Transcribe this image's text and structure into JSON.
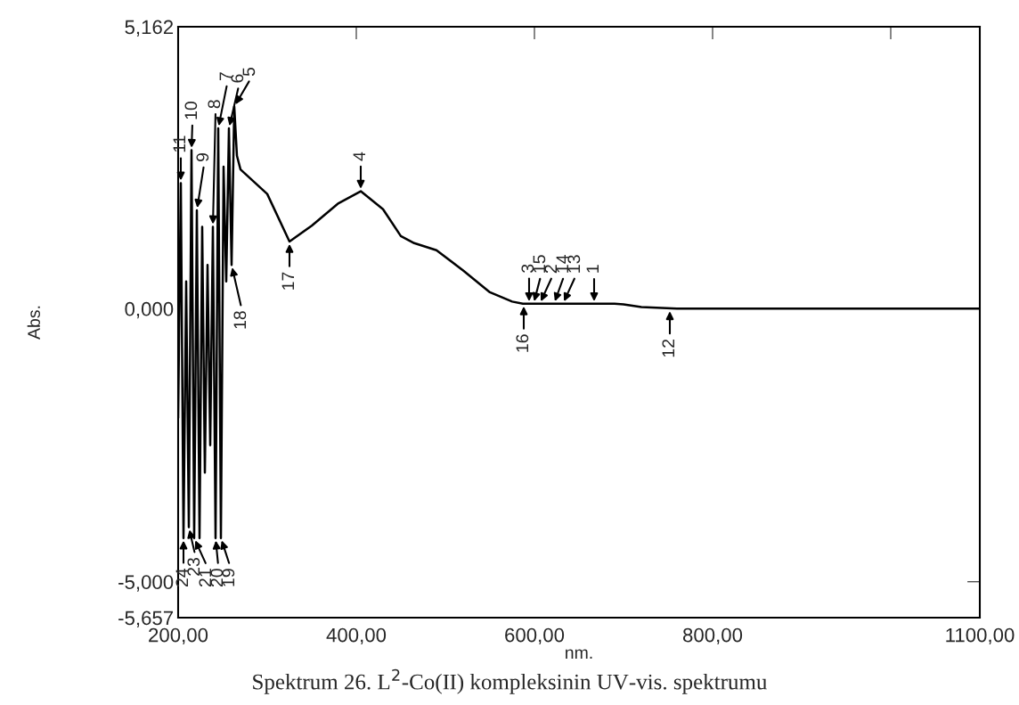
{
  "chart_data": {
    "type": "line",
    "title": "Spektrum 26. L$^{2}$-Co(II) kompleksinin UV-vis. spektrumu",
    "xlabel": "nm.",
    "ylabel": "Abs.",
    "xlim": [
      200,
      1100
    ],
    "xticks": [
      {
        "value": 200,
        "label": "200,00"
      },
      {
        "value": 400,
        "label": "400,00"
      },
      {
        "value": 600,
        "label": "600,00"
      },
      {
        "value": 800,
        "label": "800,00"
      },
      {
        "value": 1000,
        "label": null
      },
      {
        "value": 1100,
        "label": "1100,00"
      }
    ],
    "ylim": [
      -5.657,
      5.162
    ],
    "yticks": [
      {
        "value": -5.657,
        "label": "-5,657"
      },
      {
        "value": -5.0,
        "label": "-5,000"
      },
      {
        "value": 0.0,
        "label": "0,000"
      },
      {
        "value": 5.162,
        "label": "5,162"
      }
    ],
    "grid": false,
    "marker": "none",
    "line_style": "solid",
    "series": [
      {
        "color": "#000000",
        "x": [
          200,
          203,
          206,
          209,
          212,
          215,
          218,
          221,
          224,
          227,
          230,
          233,
          236,
          239,
          242,
          245,
          248,
          251,
          254,
          257,
          260,
          263,
          266,
          270,
          300,
          325,
          350,
          380,
          405,
          430,
          450,
          465,
          490,
          520,
          550,
          575,
          587,
          600,
          690,
          700,
          720,
          760,
          1100
        ],
        "values": [
          -2.0,
          2.3,
          -4.2,
          0.5,
          -4.0,
          2.9,
          -4.2,
          1.8,
          -4.2,
          1.5,
          -3.0,
          0.8,
          -2.5,
          1.5,
          -4.2,
          3.3,
          -4.2,
          2.6,
          0.5,
          3.3,
          0.8,
          3.7,
          2.8,
          2.55,
          2.1,
          1.23,
          1.52,
          1.93,
          2.15,
          1.82,
          1.33,
          1.2,
          1.07,
          0.7,
          0.3,
          0.13,
          0.09,
          0.09,
          0.09,
          0.08,
          0.03,
          0.0,
          0.0
        ]
      }
    ],
    "annotations": [
      {
        "text": "1",
        "x": 667,
        "y": 0.09
      },
      {
        "text": "2",
        "x": 606,
        "y": 0.09
      },
      {
        "text": "3",
        "x": 594,
        "y": 0.09
      },
      {
        "text": "4",
        "x": 405,
        "y": 2.15
      },
      {
        "text": "5",
        "x": 263,
        "y": 3.7
      },
      {
        "text": "6",
        "x": 257,
        "y": 3.3
      },
      {
        "text": "7",
        "x": 245,
        "y": 3.3
      },
      {
        "text": "8",
        "x": 239,
        "y": 1.5
      },
      {
        "text": "9",
        "x": 221,
        "y": 1.8
      },
      {
        "text": "10",
        "x": 215,
        "y": 2.9
      },
      {
        "text": "11",
        "x": 203,
        "y": 2.3
      },
      {
        "text": "12",
        "x": 752,
        "y": 0.0
      },
      {
        "text": "13",
        "x": 632,
        "y": 0.09
      },
      {
        "text": "14",
        "x": 622,
        "y": 0.09
      },
      {
        "text": "15",
        "x": 599,
        "y": 0.09
      },
      {
        "text": "16",
        "x": 588,
        "y": 0.09
      },
      {
        "text": "17",
        "x": 325,
        "y": 1.23
      },
      {
        "text": "18",
        "x": 260,
        "y": 0.8
      },
      {
        "text": "24",
        "x": 206,
        "y": -4.2
      },
      {
        "text": "23",
        "x": 212,
        "y": -4.0
      },
      {
        "text": "21",
        "x": 218,
        "y": -4.2
      },
      {
        "text": "20",
        "x": 242,
        "y": -4.2
      },
      {
        "text": "19",
        "x": 248,
        "y": -4.2
      }
    ]
  }
}
